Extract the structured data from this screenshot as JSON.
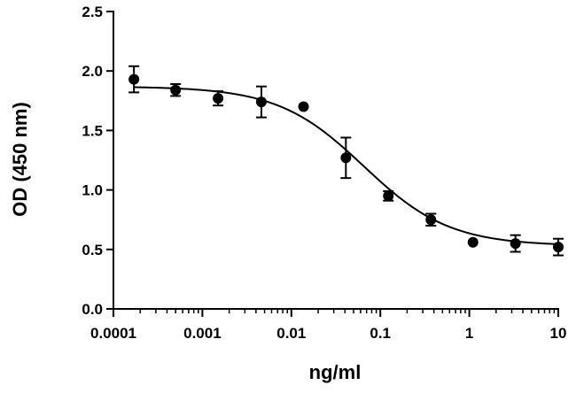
{
  "chart_data": {
    "type": "scatter",
    "title": "",
    "xlabel": "ng/ml",
    "ylabel": "OD (450 nm)",
    "x_scale": "log",
    "xlim": [
      0.0001,
      10
    ],
    "ylim": [
      0.0,
      2.5
    ],
    "x_ticks": [
      0.0001,
      0.001,
      0.01,
      0.1,
      1,
      10
    ],
    "x_tick_labels": [
      "0.0001",
      "0.001",
      "0.01",
      "0.1",
      "1",
      "10"
    ],
    "y_ticks": [
      0.0,
      0.5,
      1.0,
      1.5,
      2.0,
      2.5
    ],
    "y_tick_labels": [
      "0.0",
      "0.5",
      "1.0",
      "1.5",
      "2.0",
      "2.5"
    ],
    "grid": false,
    "legend": "none",
    "color": "#000000",
    "points": [
      {
        "x": 0.00017,
        "y": 1.93,
        "err": 0.11
      },
      {
        "x": 0.0005,
        "y": 1.84,
        "err": 0.05
      },
      {
        "x": 0.0015,
        "y": 1.77,
        "err": 0.06
      },
      {
        "x": 0.0046,
        "y": 1.74,
        "err": 0.13
      },
      {
        "x": 0.0137,
        "y": 1.7,
        "err": 0.0
      },
      {
        "x": 0.041,
        "y": 1.27,
        "err": 0.17
      },
      {
        "x": 0.123,
        "y": 0.95,
        "err": 0.04
      },
      {
        "x": 0.37,
        "y": 0.75,
        "err": 0.05
      },
      {
        "x": 1.1,
        "y": 0.56,
        "err": 0.0
      },
      {
        "x": 3.3,
        "y": 0.55,
        "err": 0.07
      },
      {
        "x": 10,
        "y": 0.52,
        "err": 0.07
      }
    ],
    "fit_curve": {
      "model": "4PL",
      "top": 1.87,
      "bottom": 0.53,
      "ec50": 0.065,
      "hill": 0.9,
      "x_range": [
        0.00017,
        10
      ]
    }
  }
}
